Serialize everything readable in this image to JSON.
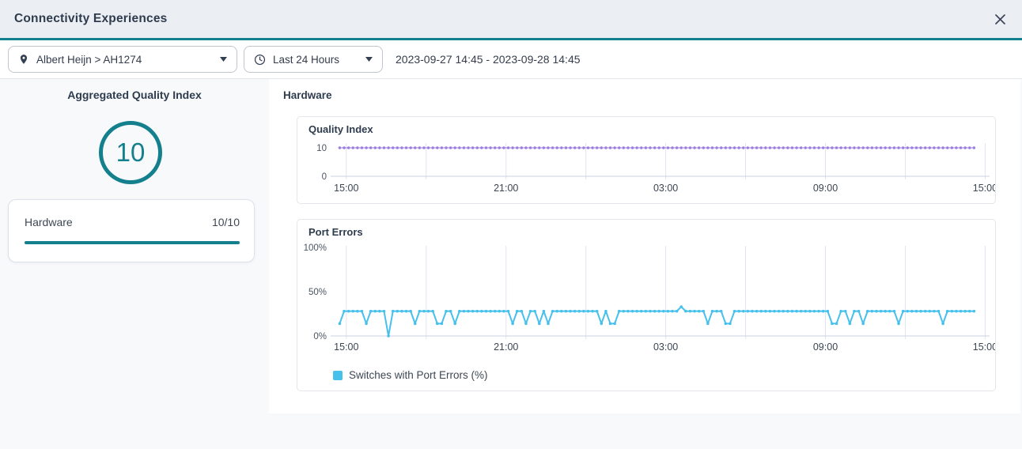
{
  "header": {
    "title": "Connectivity Experiences"
  },
  "filters": {
    "site": {
      "value": "Albert Heijn > AH1274"
    },
    "time": {
      "value": "Last 24 Hours"
    },
    "date_range": "2023-09-27 14:45 - 2023-09-28 14:45"
  },
  "summary": {
    "title": "Aggregated Quality Index",
    "score": "10",
    "categories": [
      {
        "label": "Hardware",
        "score": "10/10",
        "progress_pct": 100
      }
    ]
  },
  "section": {
    "title": "Hardware"
  },
  "colors": {
    "accent_teal": "#15808d",
    "quality_index_line": "#9b7ce0",
    "port_errors_line": "#47c1ec",
    "header_bg": "#ebeef3",
    "panel_bg": "#ffffff",
    "body_bg": "#f8f9fb",
    "gridline": "#e0e4f0",
    "axis_line": "#cbd1de",
    "text_dark": "#2e3c4e"
  },
  "chart_data": [
    {
      "type": "line",
      "title": "Quality Index",
      "x_axis": {
        "start_label": "15:00",
        "labels": [
          "15:00",
          "21:00",
          "03:00",
          "09:00",
          "15:00"
        ],
        "gridline_interval_hours": 3,
        "label_interval_hours": 6,
        "data_start": "2023-09-27 14:45",
        "data_end": "2023-09-28 14:35",
        "point_interval_minutes": 10
      },
      "y_axis": {
        "min": 0,
        "max": 10,
        "ticks": [
          {
            "label": "10",
            "value": 10
          },
          {
            "label": "0",
            "value": 0
          }
        ]
      },
      "series": [
        {
          "name": "Quality Index",
          "color": "#9b7ce0",
          "y_constant": 10,
          "point_count": 144
        }
      ]
    },
    {
      "type": "line",
      "title": "Port Errors",
      "x_axis": {
        "labels": [
          "15:00",
          "21:00",
          "03:00",
          "09:00",
          "15:00"
        ],
        "gridline_interval_hours": 3,
        "label_interval_hours": 6,
        "data_start": "2023-09-27 14:45",
        "data_end": "2023-09-28 14:35",
        "point_interval_minutes": 10
      },
      "y_axis": {
        "min": 0,
        "max": 100,
        "ticks": [
          {
            "label": "100%",
            "value": 100
          },
          {
            "label": "50%",
            "value": 50
          },
          {
            "label": "0%",
            "value": 0
          }
        ]
      },
      "series": [
        {
          "name": "Switches with Port Errors (%)",
          "color": "#47c1ec",
          "values": [
            14,
            28,
            28,
            28,
            28,
            28,
            14,
            28,
            28,
            28,
            28,
            0,
            28,
            28,
            28,
            28,
            28,
            14,
            28,
            28,
            28,
            28,
            14,
            14,
            28,
            28,
            14,
            28,
            28,
            28,
            28,
            28,
            28,
            28,
            28,
            28,
            28,
            28,
            28,
            14,
            28,
            28,
            14,
            28,
            28,
            14,
            28,
            14,
            28,
            28,
            28,
            28,
            28,
            28,
            28,
            28,
            28,
            28,
            28,
            14,
            28,
            14,
            14,
            28,
            28,
            28,
            28,
            28,
            28,
            28,
            28,
            28,
            28,
            28,
            28,
            28,
            28,
            33,
            28,
            28,
            28,
            28,
            28,
            14,
            28,
            28,
            28,
            14,
            14,
            28,
            28,
            28,
            28,
            28,
            28,
            28,
            28,
            28,
            28,
            28,
            28,
            28,
            28,
            28,
            28,
            28,
            28,
            28,
            28,
            28,
            28,
            14,
            14,
            28,
            28,
            14,
            28,
            28,
            14,
            28,
            28,
            28,
            28,
            28,
            28,
            28,
            14,
            28,
            28,
            28,
            28,
            28,
            28,
            28,
            28,
            28,
            14,
            28,
            28,
            28,
            28,
            28,
            28,
            28
          ]
        }
      ],
      "legend": [
        {
          "label": "Switches with Port Errors (%)",
          "color": "#47c1ec"
        }
      ]
    }
  ]
}
